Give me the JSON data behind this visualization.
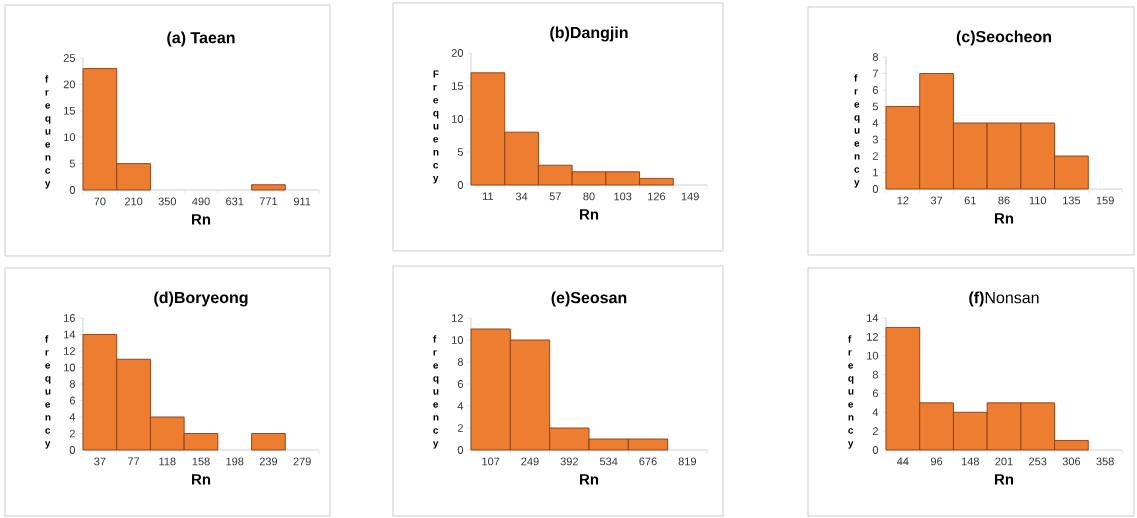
{
  "chart_data": [
    {
      "type": "bar",
      "title": "(a) Taean",
      "xlabel": "Rn",
      "ylabel": "frequency",
      "categories": [
        "70",
        "210",
        "350",
        "490",
        "631",
        "771",
        "911"
      ],
      "values": [
        23,
        5,
        0,
        0,
        0,
        1,
        0
      ],
      "color": "#ed7d31",
      "ylim": [
        0,
        25
      ],
      "yticks": [
        0,
        5,
        10,
        15,
        20,
        25
      ]
    },
    {
      "type": "bar",
      "title": "(b)Dangjin",
      "xlabel": "Rn",
      "ylabel": "Frequency",
      "categories": [
        "11",
        "34",
        "57",
        "80",
        "103",
        "126",
        "149"
      ],
      "values": [
        17,
        8,
        3,
        2,
        2,
        1,
        0
      ],
      "color": "#ed7d31",
      "ylim": [
        0,
        20
      ],
      "yticks": [
        0,
        5,
        10,
        15,
        20
      ]
    },
    {
      "type": "bar",
      "title": "(c)Seocheon",
      "xlabel": "Rn",
      "ylabel": "frequency",
      "categories": [
        "12",
        "37",
        "61",
        "86",
        "110",
        "135",
        "159"
      ],
      "values": [
        5,
        7,
        4,
        4,
        4,
        2,
        0
      ],
      "color": "#ed7d31",
      "ylim": [
        0,
        8
      ],
      "yticks": [
        0,
        1,
        2,
        3,
        4,
        5,
        6,
        7,
        8
      ]
    },
    {
      "type": "bar",
      "title": "(d)Boryeong",
      "xlabel": "Rn",
      "ylabel": "frequency",
      "categories": [
        "37",
        "77",
        "118",
        "158",
        "198",
        "239",
        "279"
      ],
      "values": [
        14,
        11,
        4,
        2,
        0,
        2,
        0
      ],
      "color": "#ed7d31",
      "ylim": [
        0,
        16
      ],
      "yticks": [
        0,
        2,
        4,
        6,
        8,
        10,
        12,
        14,
        16
      ]
    },
    {
      "type": "bar",
      "title": "(e)Seosan",
      "xlabel": "Rn",
      "ylabel": "frequency",
      "categories": [
        "107",
        "249",
        "392",
        "534",
        "676",
        "819"
      ],
      "values": [
        11,
        10,
        2,
        1,
        1,
        0
      ],
      "color": "#ed7d31",
      "ylim": [
        0,
        12
      ],
      "yticks": [
        0,
        2,
        4,
        6,
        8,
        10,
        12
      ]
    },
    {
      "type": "bar",
      "title": "**(f)**Nonsan",
      "xlabel": "Rn",
      "ylabel": "frequency",
      "categories": [
        "44",
        "96",
        "148",
        "201",
        "253",
        "306",
        "358"
      ],
      "values": [
        13,
        5,
        4,
        5,
        5,
        1,
        0
      ],
      "color": "#ed7d31",
      "ylim": [
        0,
        14
      ],
      "yticks": [
        0,
        2,
        4,
        6,
        8,
        10,
        12,
        14
      ]
    }
  ]
}
